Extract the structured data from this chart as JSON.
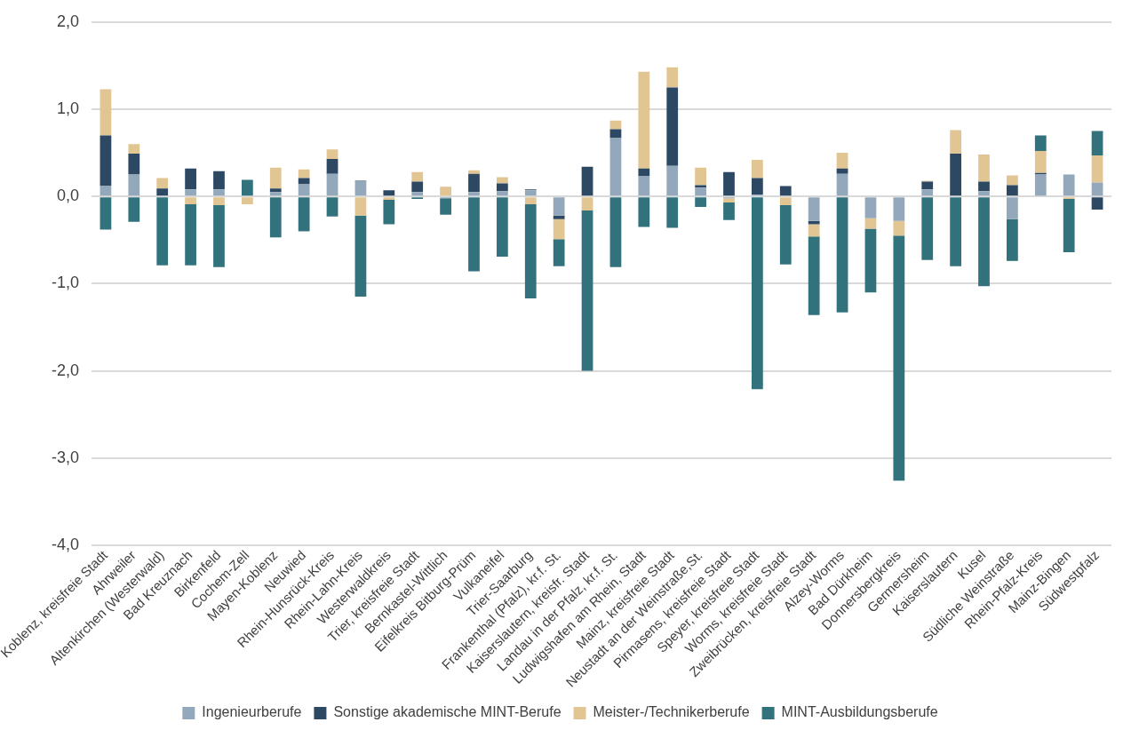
{
  "chart_data": {
    "type": "bar",
    "stacked": true,
    "categories": [
      "Koblenz, kreisfreie Stadt",
      "Ahrweiler",
      "Altenkirchen (Westerwald)",
      "Bad Kreuznach",
      "Birkenfeld",
      "Cochem-Zell",
      "Mayen-Koblenz",
      "Neuwied",
      "Rhein-Hunsrück-Kreis",
      "Rhein-Lahn-Kreis",
      "Westerwaldkreis",
      "Trier, kreisfreie Stadt",
      "Bernkastel-Wittlich",
      "Eifelkreis Bitburg-Prüm",
      "Vulkaneifel",
      "Trier-Saarburg",
      "Frankenthal (Pfalz), kr.f. St.",
      "Kaiserslautern, kreisfr. Stadt",
      "Landau in der Pfalz, kr.f. St.",
      "Ludwigshafen am Rhein, Stadt",
      "Mainz, kreisfreie Stadt",
      "Neustadt an der Weinstraße,St.",
      "Pirmasens, kreisfreie Stadt",
      "Speyer, kreisfreie Stadt",
      "Worms, kreisfreie Stadt",
      "Zweibrücken, kreisfreie Stadt",
      "Alzey-Worms",
      "Bad Dürkheim",
      "Donnersbergkreis",
      "Germersheim",
      "Kaiserslautern",
      "Kusel",
      "Südliche Weinstraße",
      "Rhein-Pfalz-Kreis",
      "Mainz-Bingen",
      "Südwestpfalz"
    ],
    "series": [
      {
        "name": "Ingenieurberufe",
        "color": "#94a8bb",
        "values": [
          0.12,
          0.25,
          0.01,
          0.08,
          0.08,
          0,
          0.05,
          0.14,
          0.26,
          0.17,
          0.01,
          0.05,
          -0.02,
          0.05,
          0.06,
          0.07,
          -0.22,
          0,
          0.67,
          0.23,
          0.35,
          0.1,
          -0.02,
          0.02,
          0.01,
          -0.28,
          0.26,
          -0.25,
          -0.28,
          0.08,
          0.01,
          0.06,
          -0.26,
          0.25,
          0.25,
          0.16
        ]
      },
      {
        "name": "Sonstige akademische MINT-Berufe",
        "color": "#2c4863",
        "values": [
          0.58,
          0.24,
          0.08,
          0.24,
          0.21,
          0,
          0.04,
          0.07,
          0.17,
          0.01,
          0.06,
          0.12,
          0,
          0.21,
          0.09,
          0.01,
          -0.04,
          0.34,
          0.1,
          0.09,
          0.9,
          0.03,
          0.28,
          0.19,
          0.11,
          -0.04,
          0.06,
          0,
          0,
          0.09,
          0.48,
          0.11,
          0.13,
          0.02,
          0,
          -0.15
        ]
      },
      {
        "name": "Meister-/Technikerberufe",
        "color": "#e1c593",
        "values": [
          0.53,
          0.11,
          0.12,
          -0.09,
          -0.1,
          -0.09,
          0.24,
          0.1,
          0.11,
          -0.22,
          -0.04,
          0.11,
          0.11,
          0.04,
          0.07,
          -0.09,
          -0.23,
          -0.16,
          0.1,
          1.11,
          0.23,
          0.2,
          -0.05,
          0.21,
          -0.1,
          -0.14,
          0.18,
          -0.12,
          -0.17,
          0.01,
          0.27,
          0.31,
          0.11,
          0.25,
          -0.03,
          0.31
        ]
      },
      {
        "name": "MINT-Ausbildungsberufe",
        "color": "#32727c",
        "values": [
          -0.38,
          -0.29,
          -0.79,
          -0.7,
          -0.71,
          0.19,
          -0.47,
          -0.4,
          -0.23,
          -0.93,
          -0.28,
          -0.03,
          -0.19,
          -0.86,
          -0.69,
          -1.08,
          -0.31,
          -1.84,
          -0.81,
          -0.35,
          -0.36,
          -0.12,
          -0.2,
          -2.21,
          -0.68,
          -0.9,
          -1.33,
          -0.73,
          -2.81,
          -0.73,
          -0.8,
          -1.03,
          -0.48,
          0.18,
          -0.61,
          0.28
        ]
      }
    ],
    "ylim": [
      -4,
      2
    ],
    "yticks": [
      {
        "value": -4,
        "label": "-4,0"
      },
      {
        "value": -3,
        "label": "-3,0"
      },
      {
        "value": -2,
        "label": "-2,0"
      },
      {
        "value": -1,
        "label": "-1,0"
      },
      {
        "value": 0,
        "label": "0,0"
      },
      {
        "value": 1,
        "label": "1,0"
      },
      {
        "value": 2,
        "label": "2,0"
      }
    ],
    "grid": "y",
    "legend": "bottom"
  }
}
